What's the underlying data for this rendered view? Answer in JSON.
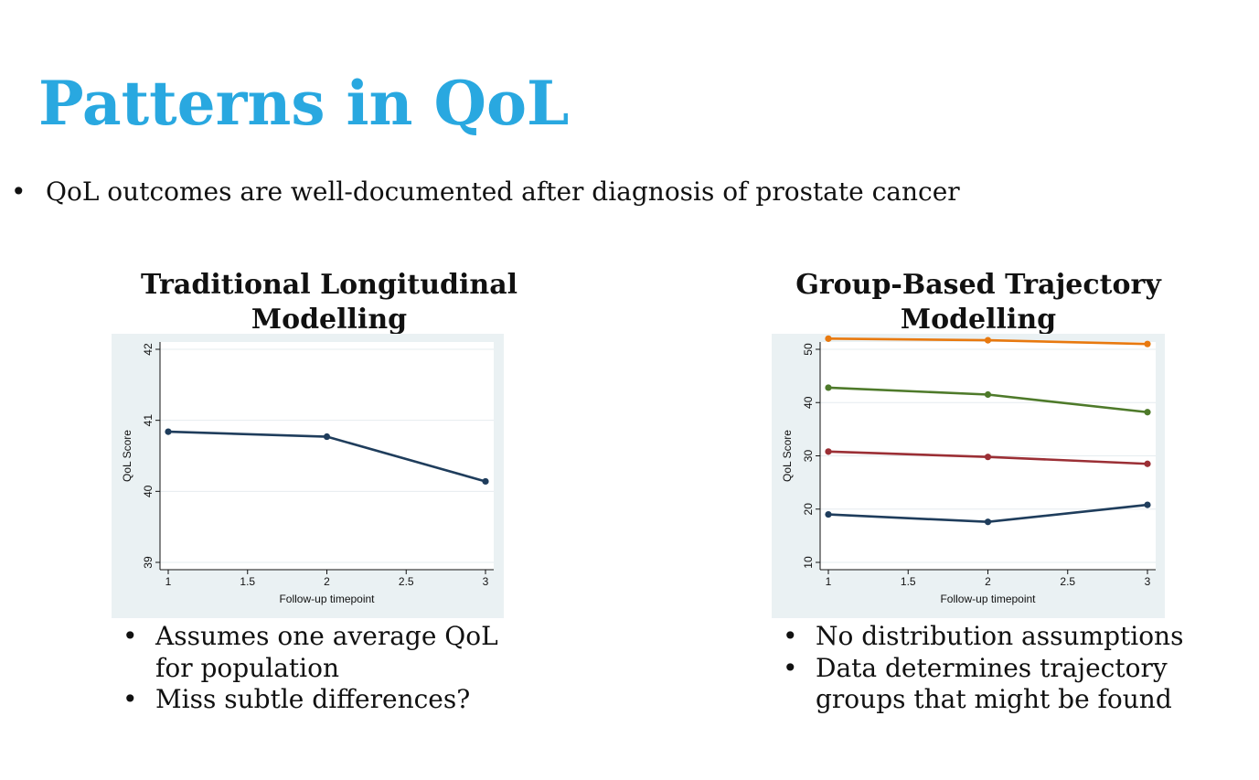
{
  "slide": {
    "title": "Patterns in QoL",
    "bullet": "QoL outcomes are well-documented after diagnosis of prostate cancer"
  },
  "left_panel": {
    "heading_line1": "Traditional Longitudinal",
    "heading_line2": "Modelling",
    "bullets": [
      "Assumes one average QoL",
      "for population",
      "Miss subtle differences?"
    ]
  },
  "right_panel": {
    "heading_line1": "Group-Based Trajectory",
    "heading_line2": "Modelling",
    "bullets": [
      "No distribution assumptions",
      "Data determines trajectory",
      "groups that might be found"
    ]
  },
  "colors": {
    "title": "#29a8e0",
    "chart_bg": "#eaf1f3",
    "navy": "#1f3d5c",
    "orange": "#e8790f",
    "green": "#4e7a2a",
    "red": "#9b2f35"
  },
  "chart_data": [
    {
      "type": "line",
      "xlabel": "Follow-up timepoint",
      "ylabel": "QoL Score",
      "x": [
        1,
        2,
        3
      ],
      "xticks": [
        1,
        1.5,
        2,
        2.5,
        3
      ],
      "xtick_labels": [
        "1",
        "1.5",
        "2",
        "2.5",
        "3"
      ],
      "xlim": [
        1,
        3
      ],
      "yticks": [
        39,
        40,
        41,
        42
      ],
      "ytick_labels": [
        "39",
        "40",
        "41",
        "42"
      ],
      "ylim": [
        39,
        42
      ],
      "grid": true,
      "series": [
        {
          "values": [
            40.84,
            40.77,
            40.14
          ],
          "color": "#1f3d5c"
        }
      ]
    },
    {
      "type": "line",
      "xlabel": "Follow-up timepoint",
      "ylabel": "QoL Score",
      "x": [
        1,
        2,
        3
      ],
      "xticks": [
        1,
        1.5,
        2,
        2.5,
        3
      ],
      "xtick_labels": [
        "1",
        "1.5",
        "2",
        "2.5",
        "3"
      ],
      "xlim": [
        1,
        3
      ],
      "yticks": [
        10,
        20,
        30,
        40,
        50
      ],
      "ytick_labels": [
        "10",
        "20",
        "30",
        "40",
        "50"
      ],
      "ylim": [
        10,
        50
      ],
      "grid": true,
      "series": [
        {
          "values": [
            52.0,
            51.7,
            51.0
          ],
          "color": "#e8790f"
        },
        {
          "values": [
            42.8,
            41.5,
            38.2
          ],
          "color": "#4e7a2a"
        },
        {
          "values": [
            30.8,
            29.8,
            28.5
          ],
          "color": "#9b2f35"
        },
        {
          "values": [
            19.0,
            17.6,
            20.8
          ],
          "color": "#1f3d5c"
        }
      ]
    }
  ]
}
